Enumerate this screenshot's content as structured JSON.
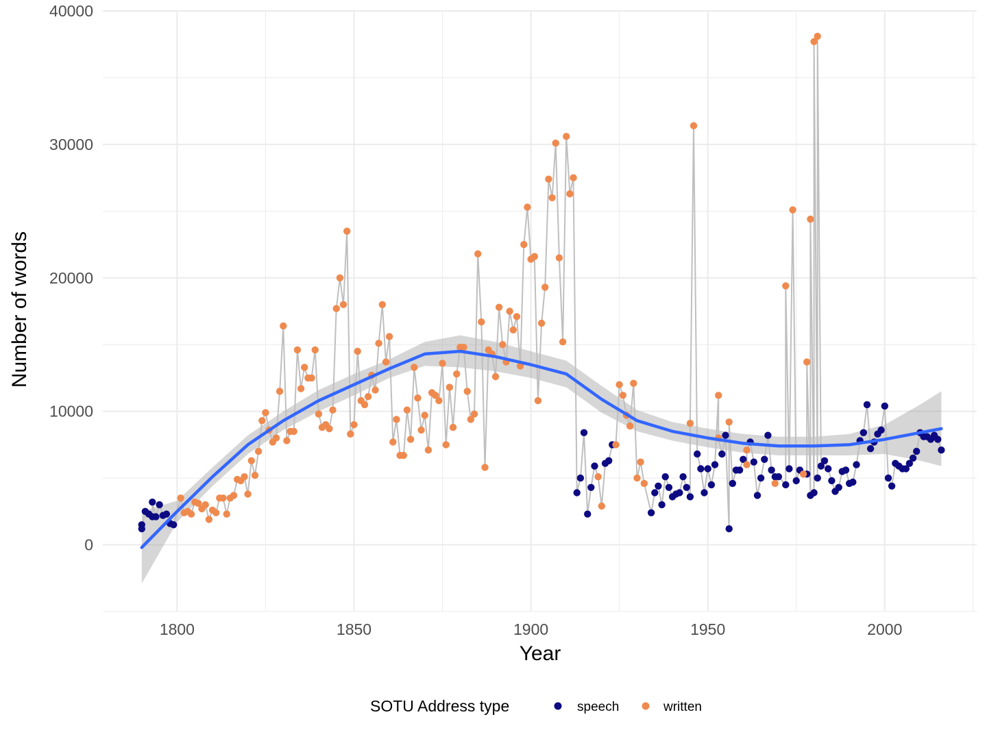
{
  "colors": {
    "speech": "#0d0a82",
    "written": "#ef8a4f",
    "line": "#bfbfbf",
    "smooth": "#3366ff",
    "band": "#999999",
    "grid": "#ebebeb"
  },
  "chart_data": {
    "type": "scatter",
    "title": "",
    "xlabel": "Year",
    "ylabel": "Number of words",
    "xlim": [
      1779,
      2026
    ],
    "ylim": [
      -5000,
      40000
    ],
    "x_ticks": [
      1800,
      1850,
      1900,
      1950,
      2000
    ],
    "y_ticks": [
      0,
      10000,
      20000,
      30000,
      40000
    ],
    "x_tick_labels": [
      "1800",
      "1850",
      "1900",
      "1950",
      "2000"
    ],
    "y_tick_labels": [
      "0",
      "10000",
      "20000",
      "30000",
      "40000"
    ],
    "grid": true,
    "legend": {
      "position": "bottom",
      "title": "SOTU Address type",
      "entries": [
        {
          "key": "speech",
          "label": "speech"
        },
        {
          "key": "written",
          "label": "written"
        }
      ]
    },
    "series": [
      {
        "name": "speech",
        "points": [
          [
            1790,
            1500
          ],
          [
            1790,
            1200
          ],
          [
            1791,
            2500
          ],
          [
            1792,
            2300
          ],
          [
            1793,
            2100
          ],
          [
            1793,
            3200
          ],
          [
            1794,
            2100
          ],
          [
            1795,
            3000
          ],
          [
            1796,
            2200
          ],
          [
            1797,
            2300
          ],
          [
            1798,
            1600
          ],
          [
            1799,
            1500
          ],
          [
            1913,
            3900
          ],
          [
            1914,
            5000
          ],
          [
            1915,
            8400
          ],
          [
            1916,
            2300
          ],
          [
            1917,
            4300
          ],
          [
            1918,
            5900
          ],
          [
            1921,
            6100
          ],
          [
            1922,
            6300
          ],
          [
            1923,
            7500
          ],
          [
            1934,
            2400
          ],
          [
            1935,
            3900
          ],
          [
            1936,
            4400
          ],
          [
            1937,
            3000
          ],
          [
            1938,
            5100
          ],
          [
            1939,
            4300
          ],
          [
            1940,
            3600
          ],
          [
            1941,
            3800
          ],
          [
            1942,
            3900
          ],
          [
            1943,
            5100
          ],
          [
            1944,
            4300
          ],
          [
            1945,
            3600
          ],
          [
            1947,
            6800
          ],
          [
            1948,
            5700
          ],
          [
            1949,
            3900
          ],
          [
            1950,
            5700
          ],
          [
            1951,
            4500
          ],
          [
            1952,
            6000
          ],
          [
            1954,
            6800
          ],
          [
            1955,
            8200
          ],
          [
            1956,
            1200
          ],
          [
            1957,
            4600
          ],
          [
            1958,
            5600
          ],
          [
            1959,
            5600
          ],
          [
            1960,
            6400
          ],
          [
            1962,
            7700
          ],
          [
            1963,
            6200
          ],
          [
            1964,
            3700
          ],
          [
            1965,
            5000
          ],
          [
            1966,
            6400
          ],
          [
            1967,
            8200
          ],
          [
            1968,
            5600
          ],
          [
            1969,
            5100
          ],
          [
            1970,
            5100
          ],
          [
            1972,
            4500
          ],
          [
            1973,
            5700
          ],
          [
            1975,
            4800
          ],
          [
            1976,
            5600
          ],
          [
            1978,
            5300
          ],
          [
            1979,
            3700
          ],
          [
            1980,
            3900
          ],
          [
            1981,
            5000
          ],
          [
            1982,
            5900
          ],
          [
            1983,
            6300
          ],
          [
            1984,
            5700
          ],
          [
            1985,
            4800
          ],
          [
            1986,
            4000
          ],
          [
            1987,
            4300
          ],
          [
            1988,
            5500
          ],
          [
            1989,
            5600
          ],
          [
            1990,
            4600
          ],
          [
            1991,
            4700
          ],
          [
            1992,
            6000
          ],
          [
            1993,
            7800
          ],
          [
            1994,
            8400
          ],
          [
            1995,
            10500
          ],
          [
            1996,
            7200
          ],
          [
            1997,
            7700
          ],
          [
            1998,
            8300
          ],
          [
            1999,
            8600
          ],
          [
            2000,
            10400
          ],
          [
            2001,
            5000
          ],
          [
            2002,
            4400
          ],
          [
            2003,
            6100
          ],
          [
            2004,
            5900
          ],
          [
            2005,
            5700
          ],
          [
            2006,
            5700
          ],
          [
            2007,
            6100
          ],
          [
            2008,
            6500
          ],
          [
            2009,
            7000
          ],
          [
            2010,
            8400
          ],
          [
            2011,
            8100
          ],
          [
            2012,
            8100
          ],
          [
            2013,
            7900
          ],
          [
            2014,
            8200
          ],
          [
            2015,
            7900
          ],
          [
            2016,
            7100
          ]
        ]
      },
      {
        "name": "written",
        "points": [
          [
            1801,
            3500
          ],
          [
            1802,
            2400
          ],
          [
            1803,
            2500
          ],
          [
            1804,
            2300
          ],
          [
            1805,
            3200
          ],
          [
            1806,
            3100
          ],
          [
            1807,
            2700
          ],
          [
            1808,
            3000
          ],
          [
            1809,
            1900
          ],
          [
            1810,
            2600
          ],
          [
            1811,
            2400
          ],
          [
            1812,
            3500
          ],
          [
            1813,
            3500
          ],
          [
            1814,
            2300
          ],
          [
            1815,
            3500
          ],
          [
            1816,
            3700
          ],
          [
            1817,
            4900
          ],
          [
            1818,
            4800
          ],
          [
            1819,
            5100
          ],
          [
            1820,
            3800
          ],
          [
            1821,
            6300
          ],
          [
            1822,
            5200
          ],
          [
            1823,
            7000
          ],
          [
            1824,
            9300
          ],
          [
            1825,
            9900
          ],
          [
            1826,
            8600
          ],
          [
            1827,
            7700
          ],
          [
            1828,
            8000
          ],
          [
            1829,
            11500
          ],
          [
            1830,
            16400
          ],
          [
            1831,
            7800
          ],
          [
            1832,
            8500
          ],
          [
            1833,
            8500
          ],
          [
            1834,
            14600
          ],
          [
            1835,
            11700
          ],
          [
            1836,
            13300
          ],
          [
            1837,
            12500
          ],
          [
            1838,
            12500
          ],
          [
            1839,
            14600
          ],
          [
            1840,
            9800
          ],
          [
            1841,
            8800
          ],
          [
            1842,
            9000
          ],
          [
            1843,
            8700
          ],
          [
            1844,
            10100
          ],
          [
            1845,
            17700
          ],
          [
            1846,
            20000
          ],
          [
            1847,
            18000
          ],
          [
            1848,
            23500
          ],
          [
            1849,
            8300
          ],
          [
            1850,
            9000
          ],
          [
            1851,
            14500
          ],
          [
            1852,
            10800
          ],
          [
            1853,
            10500
          ],
          [
            1854,
            11100
          ],
          [
            1855,
            12700
          ],
          [
            1856,
            11600
          ],
          [
            1857,
            15100
          ],
          [
            1858,
            18000
          ],
          [
            1859,
            13700
          ],
          [
            1860,
            15600
          ],
          [
            1861,
            7700
          ],
          [
            1862,
            9400
          ],
          [
            1863,
            6700
          ],
          [
            1864,
            6700
          ],
          [
            1865,
            10100
          ],
          [
            1866,
            7900
          ],
          [
            1867,
            13300
          ],
          [
            1868,
            11000
          ],
          [
            1869,
            8600
          ],
          [
            1870,
            9700
          ],
          [
            1871,
            7100
          ],
          [
            1872,
            11400
          ],
          [
            1873,
            11200
          ],
          [
            1874,
            10800
          ],
          [
            1875,
            13600
          ],
          [
            1876,
            7500
          ],
          [
            1877,
            11800
          ],
          [
            1878,
            8800
          ],
          [
            1879,
            12800
          ],
          [
            1880,
            14800
          ],
          [
            1881,
            14800
          ],
          [
            1882,
            11500
          ],
          [
            1883,
            9400
          ],
          [
            1884,
            9800
          ],
          [
            1885,
            21800
          ],
          [
            1886,
            16700
          ],
          [
            1887,
            5800
          ],
          [
            1888,
            14600
          ],
          [
            1889,
            14300
          ],
          [
            1890,
            12600
          ],
          [
            1891,
            17800
          ],
          [
            1892,
            15000
          ],
          [
            1893,
            13700
          ],
          [
            1894,
            17500
          ],
          [
            1895,
            16100
          ],
          [
            1896,
            17100
          ],
          [
            1897,
            13400
          ],
          [
            1898,
            22500
          ],
          [
            1899,
            25300
          ],
          [
            1900,
            21400
          ],
          [
            1901,
            21600
          ],
          [
            1902,
            10800
          ],
          [
            1903,
            16600
          ],
          [
            1904,
            19300
          ],
          [
            1905,
            27400
          ],
          [
            1906,
            26000
          ],
          [
            1907,
            30100
          ],
          [
            1908,
            21500
          ],
          [
            1909,
            15200
          ],
          [
            1910,
            30600
          ],
          [
            1911,
            26300
          ],
          [
            1912,
            27500
          ],
          [
            1919,
            5100
          ],
          [
            1920,
            2900
          ],
          [
            1924,
            7500
          ],
          [
            1925,
            12000
          ],
          [
            1926,
            11200
          ],
          [
            1927,
            9700
          ],
          [
            1928,
            8900
          ],
          [
            1929,
            12100
          ],
          [
            1930,
            5000
          ],
          [
            1931,
            6200
          ],
          [
            1932,
            4600
          ],
          [
            1945,
            9100
          ],
          [
            1946,
            31400
          ],
          [
            1953,
            11200
          ],
          [
            1953,
            8000
          ],
          [
            1956,
            9200
          ],
          [
            1961,
            6000
          ],
          [
            1961,
            7100
          ],
          [
            1969,
            4600
          ],
          [
            1972,
            19400
          ],
          [
            1974,
            25100
          ],
          [
            1977,
            5300
          ],
          [
            1978,
            13700
          ],
          [
            1979,
            24400
          ],
          [
            1980,
            37700
          ],
          [
            1981,
            38100
          ]
        ]
      }
    ],
    "connecting_line": true,
    "smooth": {
      "name": "loess",
      "x": [
        1790,
        1800,
        1810,
        1820,
        1830,
        1840,
        1850,
        1860,
        1870,
        1880,
        1890,
        1900,
        1910,
        1920,
        1930,
        1940,
        1950,
        1960,
        1970,
        1980,
        1990,
        2000,
        2010,
        2016
      ],
      "y": [
        -200,
        2500,
        5100,
        7500,
        9300,
        10800,
        12000,
        13200,
        14300,
        14500,
        14100,
        13500,
        12800,
        10900,
        9300,
        8500,
        8000,
        7600,
        7400,
        7400,
        7500,
        7900,
        8400,
        8700
      ],
      "lower": [
        -2900,
        1700,
        4400,
        6800,
        8600,
        10000,
        11200,
        12500,
        13400,
        13300,
        13000,
        12500,
        11800,
        9900,
        8500,
        7800,
        7300,
        6900,
        6700,
        6700,
        6700,
        6800,
        6300,
        5900
      ],
      "upper": [
        2500,
        3300,
        5800,
        8200,
        10000,
        11600,
        12800,
        13900,
        15200,
        15700,
        15200,
        14500,
        13800,
        11900,
        10100,
        9200,
        8700,
        8300,
        8100,
        8100,
        8300,
        9000,
        10500,
        11500
      ]
    }
  }
}
